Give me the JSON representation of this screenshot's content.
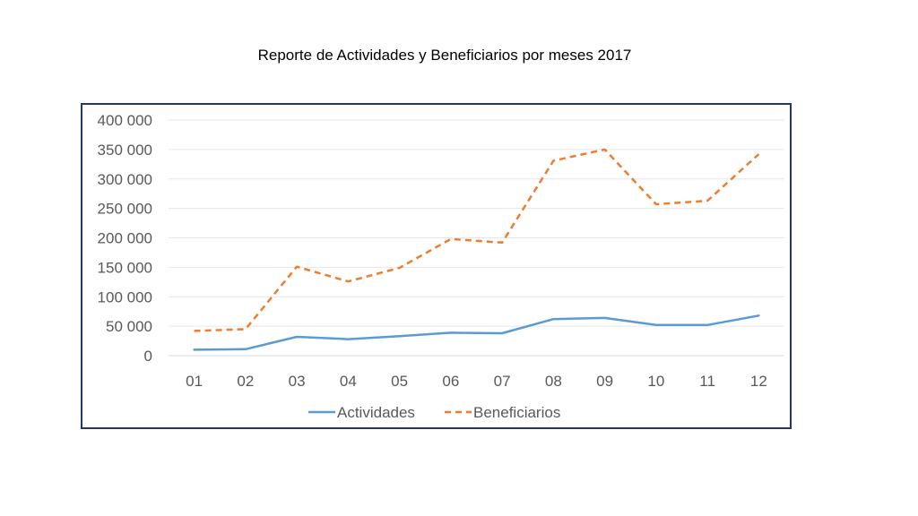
{
  "chart_data": {
    "type": "line",
    "title": "Reporte de Actividades y Beneficiarios por meses 2017",
    "xlabel": "",
    "ylabel": "",
    "categories": [
      "01",
      "02",
      "03",
      "04",
      "05",
      "06",
      "07",
      "08",
      "09",
      "10",
      "11",
      "12"
    ],
    "ylim": [
      0,
      400000
    ],
    "yticks": [
      0,
      50000,
      100000,
      150000,
      200000,
      250000,
      300000,
      350000,
      400000
    ],
    "ytick_labels": [
      "0",
      "50 000",
      "100 000",
      "150 000",
      "200 000",
      "250 000",
      "300 000",
      "350 000",
      "400 000"
    ],
    "grid": true,
    "legend_position": "bottom",
    "series": [
      {
        "name": "Actividades",
        "color": "#5b9bd5",
        "style": "solid",
        "values": [
          10000,
          11000,
          32000,
          28000,
          33000,
          39000,
          38000,
          62000,
          64000,
          52000,
          52000,
          68000
        ]
      },
      {
        "name": "Beneficiarios",
        "color": "#ed7d31",
        "style": "dashed",
        "values": [
          42000,
          45000,
          151000,
          126000,
          149000,
          198000,
          192000,
          331000,
          350000,
          257000,
          263000,
          342000
        ]
      }
    ]
  }
}
